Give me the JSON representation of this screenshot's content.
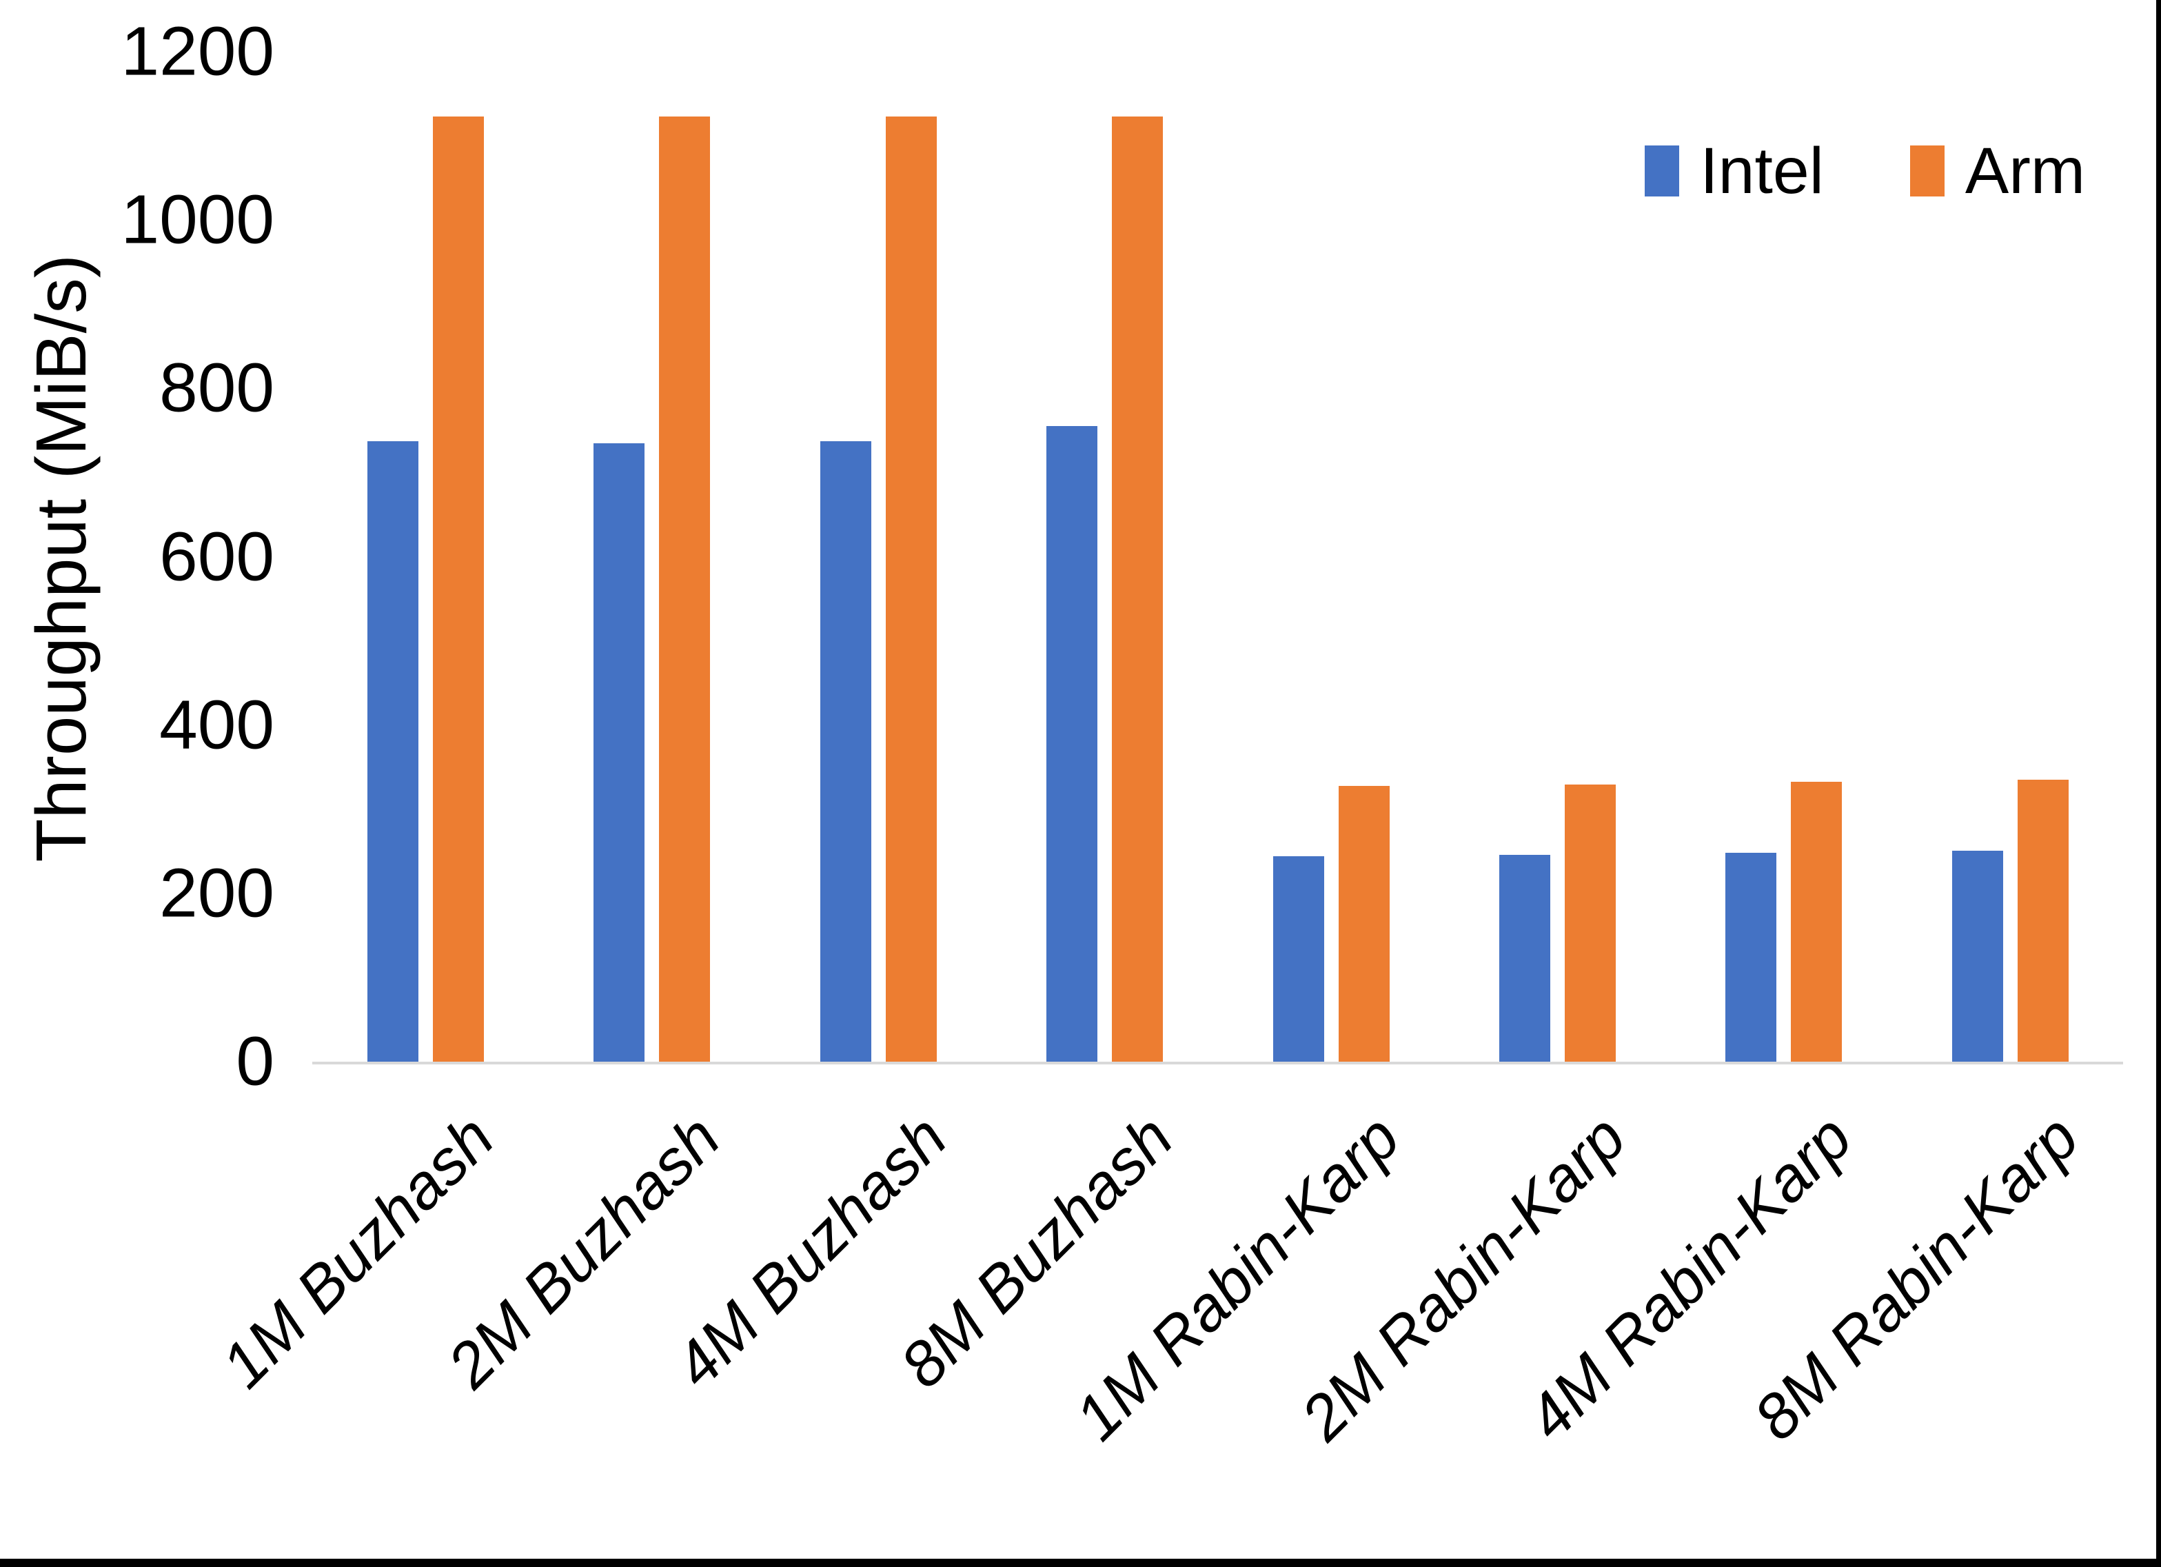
{
  "figure": {
    "background": "#FFFFFF",
    "outer_border_color": "#000000",
    "axis_line_color": "#D9D9D9",
    "text_color": "#000000"
  },
  "chart_data": {
    "type": "bar",
    "title": "",
    "categories": [
      "1M Buzhash",
      "2M Buzhash",
      "4M Buzhash",
      "8M Buzhash",
      "1M Rabin-Karp",
      "2M Rabin-Karp",
      "4M Rabin-Karp",
      "8M Rabin-Karp"
    ],
    "series": [
      {
        "name": "Intel",
        "color": "#4472C4",
        "values": [
          739,
          736,
          739,
          757,
          246,
          247,
          250,
          252
        ]
      },
      {
        "name": "Arm",
        "color": "#ED7D31",
        "values": [
          1125,
          1125,
          1125,
          1125,
          329,
          331,
          334,
          337
        ]
      }
    ],
    "xlabel": "",
    "ylabel": "Throughput (MiB/s)",
    "ylim": [
      0,
      1200
    ],
    "yticks": [
      0,
      200,
      400,
      600,
      800,
      1000,
      1200
    ],
    "grid": false,
    "legend_position": "top-right"
  }
}
